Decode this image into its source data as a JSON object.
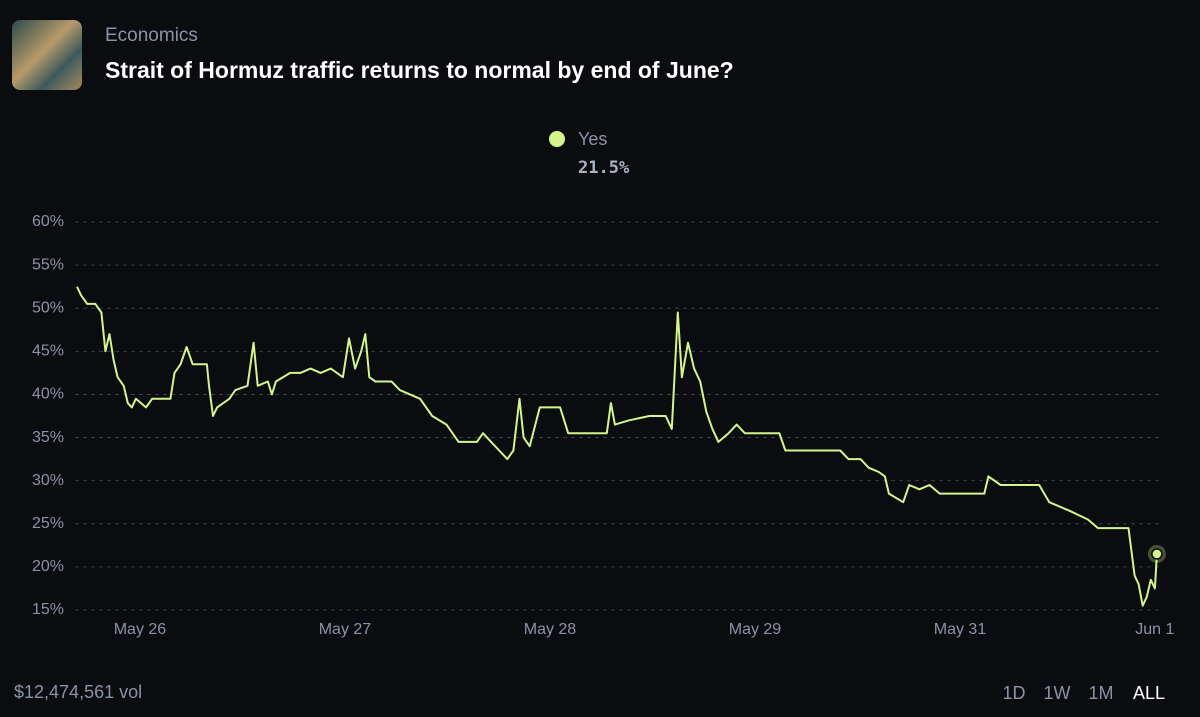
{
  "header": {
    "category": "Economics",
    "title": "Strait of Hormuz traffic returns to normal by end of June?"
  },
  "current_price": "21.5%",
  "chart_data": {
    "type": "line",
    "x": [
      -0.31,
      -0.29,
      -0.26,
      -0.22,
      -0.19,
      -0.17,
      -0.15,
      -0.13,
      -0.11,
      -0.08,
      -0.06,
      -0.04,
      -0.02,
      0.03,
      0.06,
      0.15,
      0.17,
      0.2,
      0.23,
      0.26,
      0.33,
      0.34,
      0.36,
      0.38,
      0.44,
      0.47,
      0.53,
      0.56,
      0.58,
      0.63,
      0.65,
      0.67,
      0.74,
      0.79,
      0.84,
      0.89,
      0.94,
      1.0,
      1.03,
      1.06,
      1.09,
      1.11,
      1.13,
      1.16,
      1.24,
      1.28,
      1.38,
      1.44,
      1.51,
      1.54,
      1.57,
      1.66,
      1.69,
      1.73,
      1.77,
      1.81,
      1.84,
      1.87,
      1.89,
      1.92,
      1.97,
      2.07,
      2.11,
      2.3,
      2.32,
      2.34,
      2.41,
      2.51,
      2.59,
      2.62,
      2.65,
      2.67,
      2.7,
      2.73,
      2.76,
      2.79,
      2.82,
      2.85,
      2.9,
      2.94,
      2.98,
      3.15,
      3.18,
      3.45,
      3.49,
      3.55,
      3.59,
      3.64,
      3.67,
      3.69,
      3.76,
      3.79,
      3.84,
      3.89,
      3.94,
      4.16,
      4.18,
      4.24,
      4.28,
      4.43,
      4.48,
      4.58,
      4.67,
      4.72,
      4.87,
      4.9,
      4.92,
      4.94,
      4.96,
      4.98,
      5.0,
      5.01
    ],
    "series": [
      {
        "name": "Yes",
        "color": "#d3f58c",
        "values": [
          52.5,
          51.5,
          50.5,
          50.5,
          49.5,
          45,
          47,
          44,
          42,
          41,
          39,
          38.5,
          39.5,
          38.5,
          39.5,
          39.5,
          42.5,
          43.5,
          45.5,
          43.5,
          43.5,
          41,
          37.5,
          38.5,
          39.5,
          40.5,
          41,
          46,
          41,
          41.5,
          40,
          41.5,
          42.5,
          42.5,
          43,
          42.5,
          43,
          42,
          46.5,
          43,
          45,
          47,
          42,
          41.5,
          41.5,
          40.5,
          39.5,
          37.5,
          36.5,
          35.5,
          34.5,
          34.5,
          35.5,
          34.5,
          33.5,
          32.5,
          33.5,
          39.5,
          35,
          34,
          38.5,
          38.5,
          35.5,
          35.5,
          39,
          36.5,
          37,
          37.5,
          37.5,
          36,
          49.5,
          42,
          46,
          43,
          41.5,
          38,
          36,
          34.5,
          35.5,
          36.5,
          35.5,
          35.5,
          33.5,
          33.5,
          32.5,
          32.5,
          31.5,
          31,
          30.5,
          28.5,
          27.5,
          29.5,
          29,
          29.5,
          28.5,
          28.5,
          30.5,
          29.5,
          29.5,
          29.5,
          27.5,
          26.5,
          25.5,
          24.5,
          24.5,
          19,
          18,
          15.5,
          16.5,
          18.5,
          17.5,
          21.5
        ]
      }
    ],
    "xlim": [
      -0.32,
      5.05
    ],
    "xticks": [
      {
        "value": 0,
        "label": "May 26"
      },
      {
        "value": 1.01,
        "label": "May 27"
      },
      {
        "value": 2.02,
        "label": "May 28"
      },
      {
        "value": 3.03,
        "label": "May 29"
      },
      {
        "value": 4.04,
        "label": "May 31"
      },
      {
        "value": 5,
        "label": "Jun 1"
      }
    ],
    "ylim": [
      15,
      60
    ],
    "yticks": [
      {
        "value": 15,
        "label": "15%"
      },
      {
        "value": 20,
        "label": "20%"
      },
      {
        "value": 25,
        "label": "25%"
      },
      {
        "value": 30,
        "label": "30%"
      },
      {
        "value": 35,
        "label": "35%"
      },
      {
        "value": 40,
        "label": "40%"
      },
      {
        "value": 45,
        "label": "45%"
      },
      {
        "value": 50,
        "label": "50%"
      },
      {
        "value": 55,
        "label": "55%"
      },
      {
        "value": 60,
        "label": "60%"
      }
    ],
    "grid": true
  },
  "footer": {
    "volume": "$12,474,561 vol",
    "ranges": [
      "1D",
      "1W",
      "1M",
      "ALL"
    ],
    "selected_range": 3
  }
}
